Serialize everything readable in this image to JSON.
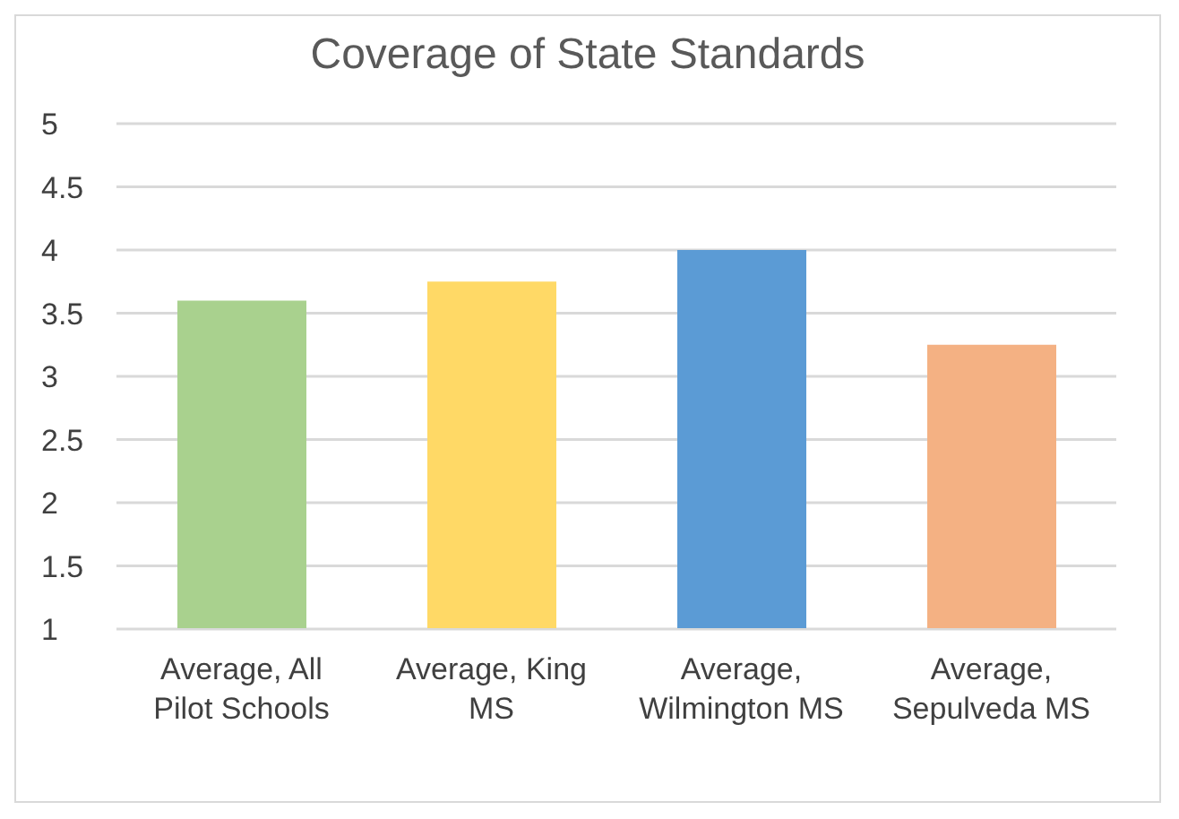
{
  "chart_data": {
    "type": "bar",
    "title": "Coverage of State Standards",
    "categories": [
      "Average, All Pilot Schools",
      "Average, King MS",
      "Average, Wilmington MS",
      "Average, Sepulveda MS"
    ],
    "values": [
      3.6,
      3.75,
      4.0,
      3.25
    ],
    "colors": [
      "#a9d18e",
      "#ffd966",
      "#5b9bd5",
      "#f4b183"
    ],
    "ylim": [
      1,
      5
    ],
    "yticks": [
      1,
      1.5,
      2,
      2.5,
      3,
      3.5,
      4,
      4.5,
      5
    ],
    "grid": "y"
  }
}
